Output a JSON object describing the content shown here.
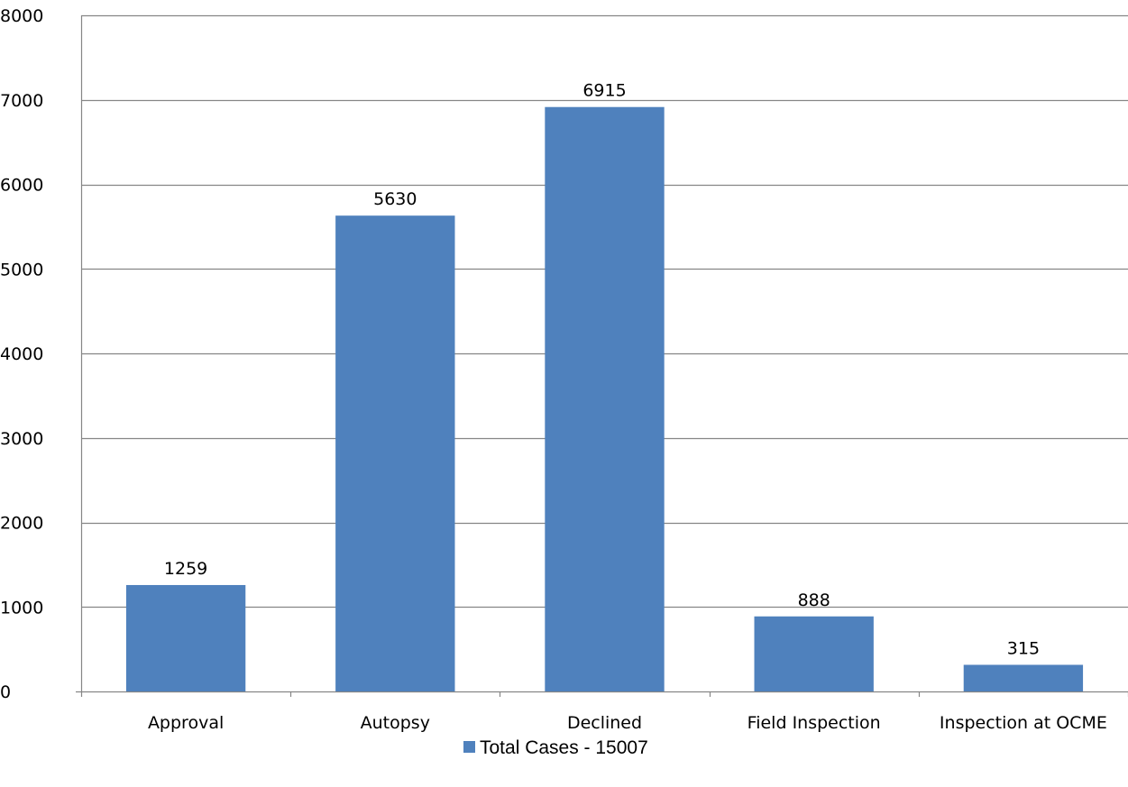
{
  "chart_data": {
    "type": "bar",
    "categories": [
      "Approval",
      "Autopsy",
      "Declined",
      "Field Inspection",
      "Inspection at OCME"
    ],
    "series": [
      {
        "name": "Total Cases - 15007",
        "values": [
          1259,
          5630,
          6915,
          888,
          315
        ]
      }
    ],
    "title": "",
    "xlabel": "",
    "ylabel": "",
    "ylim": [
      0,
      8000
    ],
    "yticks": [
      0,
      1000,
      2000,
      3000,
      4000,
      5000,
      6000,
      7000,
      8000
    ],
    "grid": true,
    "legend_position": "bottom",
    "data_labels": true
  },
  "colors": {
    "bar": "#4f81bd",
    "grid": "#868686",
    "axis": "#868686"
  }
}
